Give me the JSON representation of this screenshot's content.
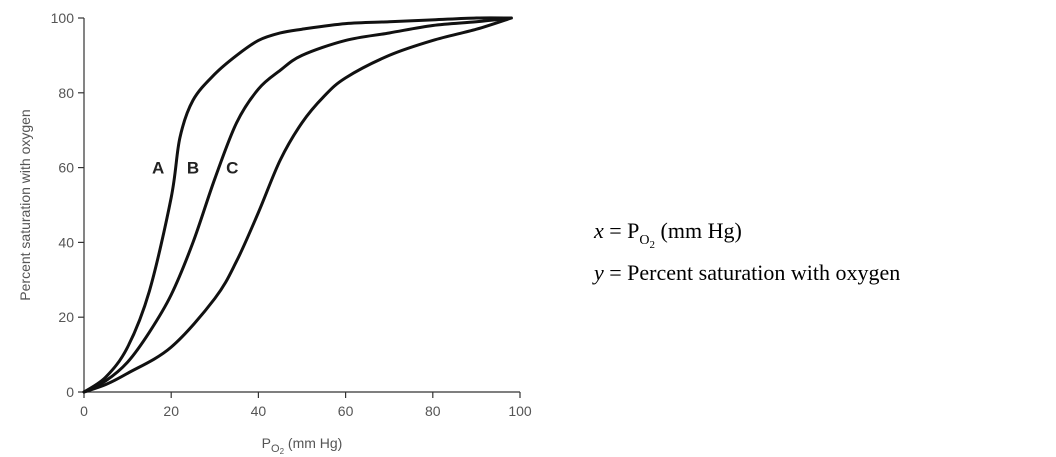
{
  "chart_data": {
    "type": "line",
    "xlabel": "P",
    "xlabel_sub": "O",
    "xlabel_sub2": "2",
    "xlabel_units": " (mm Hg)",
    "ylabel": "Percent saturation with oxygen",
    "xlim": [
      0,
      100
    ],
    "ylim": [
      0,
      100
    ],
    "xticks": [
      "0",
      "20",
      "40",
      "60",
      "80",
      "100"
    ],
    "yticks": [
      "0",
      "20",
      "40",
      "60",
      "80",
      "100"
    ],
    "grid": false,
    "series": [
      {
        "name": "A",
        "x": [
          0,
          5,
          10,
          15,
          20,
          22,
          25,
          30,
          35,
          40,
          45,
          50,
          60,
          70,
          80,
          90,
          98
        ],
        "y": [
          0,
          4,
          12,
          27,
          52,
          68,
          78,
          85,
          90,
          94,
          96,
          97,
          98.5,
          99,
          99.5,
          100,
          100
        ]
      },
      {
        "name": "B",
        "x": [
          0,
          5,
          10,
          15,
          20,
          25,
          30,
          35,
          40,
          45,
          50,
          60,
          70,
          80,
          90,
          98
        ],
        "y": [
          0,
          3,
          8,
          16,
          26,
          40,
          57,
          72,
          81,
          86,
          90,
          94,
          96,
          98,
          99,
          100
        ]
      },
      {
        "name": "C",
        "x": [
          0,
          5,
          10,
          20,
          30,
          35,
          40,
          45,
          50,
          55,
          60,
          70,
          80,
          90,
          98
        ],
        "y": [
          0,
          2,
          5,
          12,
          25,
          35,
          48,
          62,
          72,
          79,
          84,
          90,
          94,
          97,
          100
        ]
      }
    ],
    "curve_labels": [
      {
        "text": "A",
        "x": 17,
        "y": 60
      },
      {
        "text": "B",
        "x": 25,
        "y": 60
      },
      {
        "text": "C",
        "x": 34,
        "y": 60
      }
    ]
  },
  "legend": {
    "x_var": "x",
    "x_eq": " = P",
    "x_sub": "O",
    "x_sub2": "2",
    "x_units": "  (mm Hg)",
    "y_var": "y",
    "y_text": " = Percent saturation with oxygen"
  }
}
